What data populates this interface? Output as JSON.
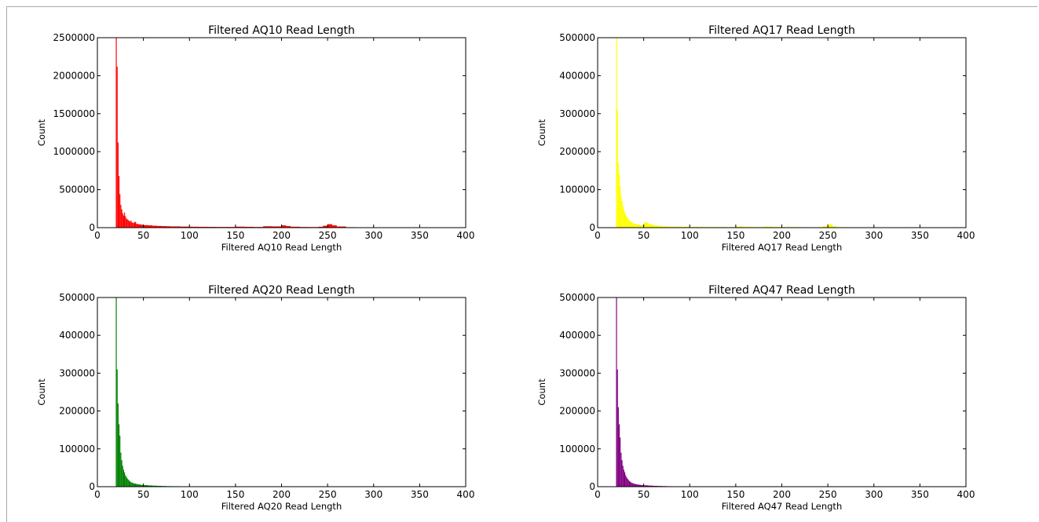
{
  "chart_data": [
    {
      "type": "bar",
      "title": "Filtered AQ10 Read Length",
      "xlabel": "Filtered AQ10 Read Length",
      "ylabel": "Count",
      "color": "#ff0000",
      "xlim": [
        0,
        400
      ],
      "ylim": [
        0,
        2500000
      ],
      "xticks": [
        "0",
        "50",
        "100",
        "150",
        "200",
        "250",
        "300",
        "350",
        "400"
      ],
      "yticks": [
        "0",
        "500000",
        "1000000",
        "1500000",
        "2000000",
        "2500000"
      ],
      "series": [
        {
          "x": [
            20,
            21,
            22,
            23,
            24,
            25,
            26,
            27,
            28,
            29,
            30,
            31,
            32,
            33,
            34,
            35,
            36,
            37,
            38,
            39,
            40,
            42,
            44,
            46,
            48,
            50,
            55,
            60,
            65,
            70,
            75,
            80,
            90,
            100,
            110,
            120,
            130,
            140,
            150,
            160,
            170,
            180,
            190,
            200,
            205,
            210,
            220,
            230,
            240,
            245,
            250,
            255,
            260,
            270,
            280,
            300,
            320,
            340,
            360,
            380,
            399
          ],
          "values": [
            2500000,
            2120000,
            1120000,
            680000,
            440000,
            300000,
            240000,
            190000,
            160000,
            200000,
            150000,
            120000,
            110000,
            100000,
            90000,
            80000,
            95000,
            70000,
            65000,
            60000,
            75000,
            50000,
            45000,
            42000,
            38000,
            33000,
            30000,
            25000,
            22000,
            20000,
            18000,
            16000,
            14000,
            12000,
            11000,
            10000,
            9000,
            9500,
            13000,
            11000,
            9000,
            18000,
            16000,
            30000,
            20000,
            12000,
            9000,
            8000,
            12000,
            25000,
            45000,
            30000,
            15000,
            6000,
            4000,
            3000,
            2000,
            1500,
            1000,
            800,
            500
          ]
        }
      ]
    },
    {
      "type": "bar",
      "title": "Filtered AQ17 Read Length",
      "xlabel": "Filtered AQ17 Read Length",
      "ylabel": "Count",
      "color": "#ffff00",
      "xlim": [
        0,
        400
      ],
      "ylim": [
        0,
        500000
      ],
      "xticks": [
        "0",
        "50",
        "100",
        "150",
        "200",
        "250",
        "300",
        "350",
        "400"
      ],
      "yticks": [
        "0",
        "100000",
        "200000",
        "300000",
        "400000",
        "500000"
      ],
      "series": [
        {
          "x": [
            20,
            21,
            22,
            23,
            24,
            25,
            26,
            27,
            28,
            29,
            30,
            31,
            32,
            33,
            34,
            35,
            36,
            37,
            38,
            39,
            40,
            42,
            44,
            46,
            48,
            50,
            55,
            60,
            65,
            70,
            75,
            80,
            90,
            100,
            110,
            120,
            130,
            140,
            150,
            160,
            170,
            180,
            190,
            200,
            210,
            220,
            230,
            240,
            245,
            250,
            255,
            260,
            270,
            280,
            300,
            320,
            340,
            360,
            380,
            399
          ],
          "values": [
            500000,
            310000,
            170000,
            140000,
            110000,
            85000,
            70000,
            58000,
            48000,
            40000,
            34000,
            30000,
            26000,
            22000,
            19000,
            17000,
            15000,
            14000,
            12000,
            11000,
            10000,
            8500,
            7500,
            6500,
            6000,
            13000,
            9000,
            6000,
            4500,
            3500,
            3000,
            2500,
            2200,
            2000,
            1800,
            1600,
            1500,
            1400,
            2800,
            1700,
            1500,
            2500,
            1800,
            1600,
            1500,
            1200,
            1000,
            1500,
            3500,
            8500,
            3000,
            1200,
            800,
            600,
            400,
            300,
            200,
            150,
            100,
            80
          ]
        }
      ]
    },
    {
      "type": "bar",
      "title": "Filtered AQ20 Read Length",
      "xlabel": "Filtered AQ20 Read Length",
      "ylabel": "Count",
      "color": "#008000",
      "xlim": [
        0,
        400
      ],
      "ylim": [
        0,
        500000
      ],
      "xticks": [
        "0",
        "50",
        "100",
        "150",
        "200",
        "250",
        "300",
        "350",
        "400"
      ],
      "yticks": [
        "0",
        "100000",
        "200000",
        "300000",
        "400000",
        "500000"
      ],
      "series": [
        {
          "x": [
            20,
            21,
            22,
            23,
            24,
            25,
            26,
            27,
            28,
            29,
            30,
            31,
            32,
            33,
            34,
            35,
            36,
            37,
            38,
            39,
            40,
            42,
            44,
            46,
            48,
            50,
            55,
            60,
            65,
            70,
            75,
            80,
            90,
            100,
            110,
            120,
            130,
            140,
            150,
            160,
            170,
            180,
            190,
            200,
            220,
            250,
            300,
            350,
            399
          ],
          "values": [
            500000,
            310000,
            220000,
            165000,
            135000,
            90000,
            70000,
            55000,
            45000,
            38000,
            30000,
            26000,
            22000,
            19000,
            16000,
            14000,
            12000,
            11000,
            10000,
            9000,
            8000,
            7000,
            6000,
            5200,
            4500,
            4000,
            3200,
            2600,
            2100,
            1700,
            1400,
            1200,
            1000,
            800,
            700,
            650,
            600,
            550,
            500,
            450,
            400,
            350,
            300,
            250,
            200,
            150,
            100,
            80,
            50
          ]
        }
      ]
    },
    {
      "type": "bar",
      "title": "Filtered AQ47 Read Length",
      "xlabel": "Filtered AQ47 Read Length",
      "ylabel": "Count",
      "color": "#800080",
      "xlim": [
        0,
        400
      ],
      "ylim": [
        0,
        500000
      ],
      "xticks": [
        "0",
        "50",
        "100",
        "150",
        "200",
        "250",
        "300",
        "350",
        "400"
      ],
      "yticks": [
        "0",
        "100000",
        "200000",
        "300000",
        "400000",
        "500000"
      ],
      "series": [
        {
          "x": [
            20,
            21,
            22,
            23,
            24,
            25,
            26,
            27,
            28,
            29,
            30,
            31,
            32,
            33,
            34,
            35,
            36,
            37,
            38,
            39,
            40,
            42,
            44,
            46,
            48,
            50,
            55,
            60,
            65,
            70,
            75,
            80,
            90,
            100,
            150,
            200,
            250,
            300,
            350,
            399
          ],
          "values": [
            500000,
            310000,
            210000,
            165000,
            130000,
            90000,
            70000,
            55000,
            45000,
            38000,
            30000,
            25000,
            21000,
            18000,
            15000,
            13000,
            11000,
            10000,
            9000,
            8000,
            7000,
            6000,
            5200,
            4500,
            4000,
            3500,
            2800,
            2200,
            1800,
            1500,
            1200,
            1000,
            700,
            500,
            300,
            200,
            150,
            100,
            80,
            50
          ]
        }
      ]
    }
  ]
}
